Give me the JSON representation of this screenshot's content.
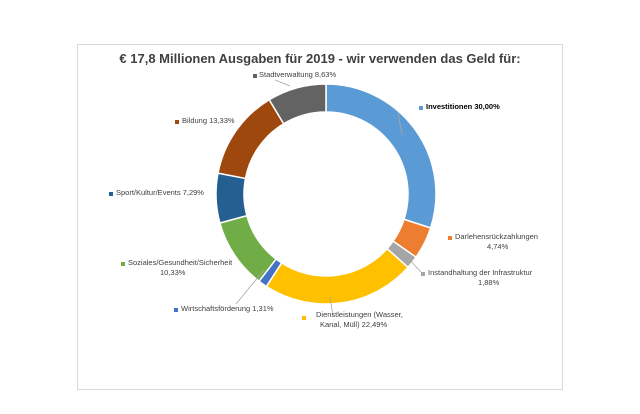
{
  "chart_data": {
    "type": "pie",
    "style": "donut",
    "title": "€ 17,8 Millionen Ausgaben für 2019 - wir verwenden das Geld für:",
    "series": [
      {
        "label_lines": [
          "Investitionen 30,00%"
        ],
        "value": 30.0,
        "color": "#5B9BD5",
        "bold": true
      },
      {
        "label_lines": [
          "Darlehensrückzahlungen",
          "4,74%"
        ],
        "value": 4.74,
        "color": "#ED7D31"
      },
      {
        "label_lines": [
          "Instandhaltung der Infrastruktur",
          "1,88%"
        ],
        "value": 1.88,
        "color": "#A5A5A5"
      },
      {
        "label_lines": [
          "Dienstleistungen (Wasser,",
          "Kanal, Müll) 22,49%"
        ],
        "value": 22.49,
        "color": "#FFC000"
      },
      {
        "label_lines": [
          "Wirtschaftsförderung 1,31%"
        ],
        "value": 1.31,
        "color": "#4472C4"
      },
      {
        "label_lines": [
          "Soziales/Gesundheit/Sicherheit",
          "10,33%"
        ],
        "value": 10.33,
        "color": "#70AD47"
      },
      {
        "label_lines": [
          "Sport/Kultur/Events  7,29%"
        ],
        "value": 7.29,
        "color": "#255E91"
      },
      {
        "label_lines": [
          "Bildung   13,33%"
        ],
        "value": 13.33,
        "color": "#9E480E"
      },
      {
        "label_lines": [
          "Stadtverwaltung 8,63%"
        ],
        "value": 8.63,
        "color": "#636363"
      }
    ]
  }
}
